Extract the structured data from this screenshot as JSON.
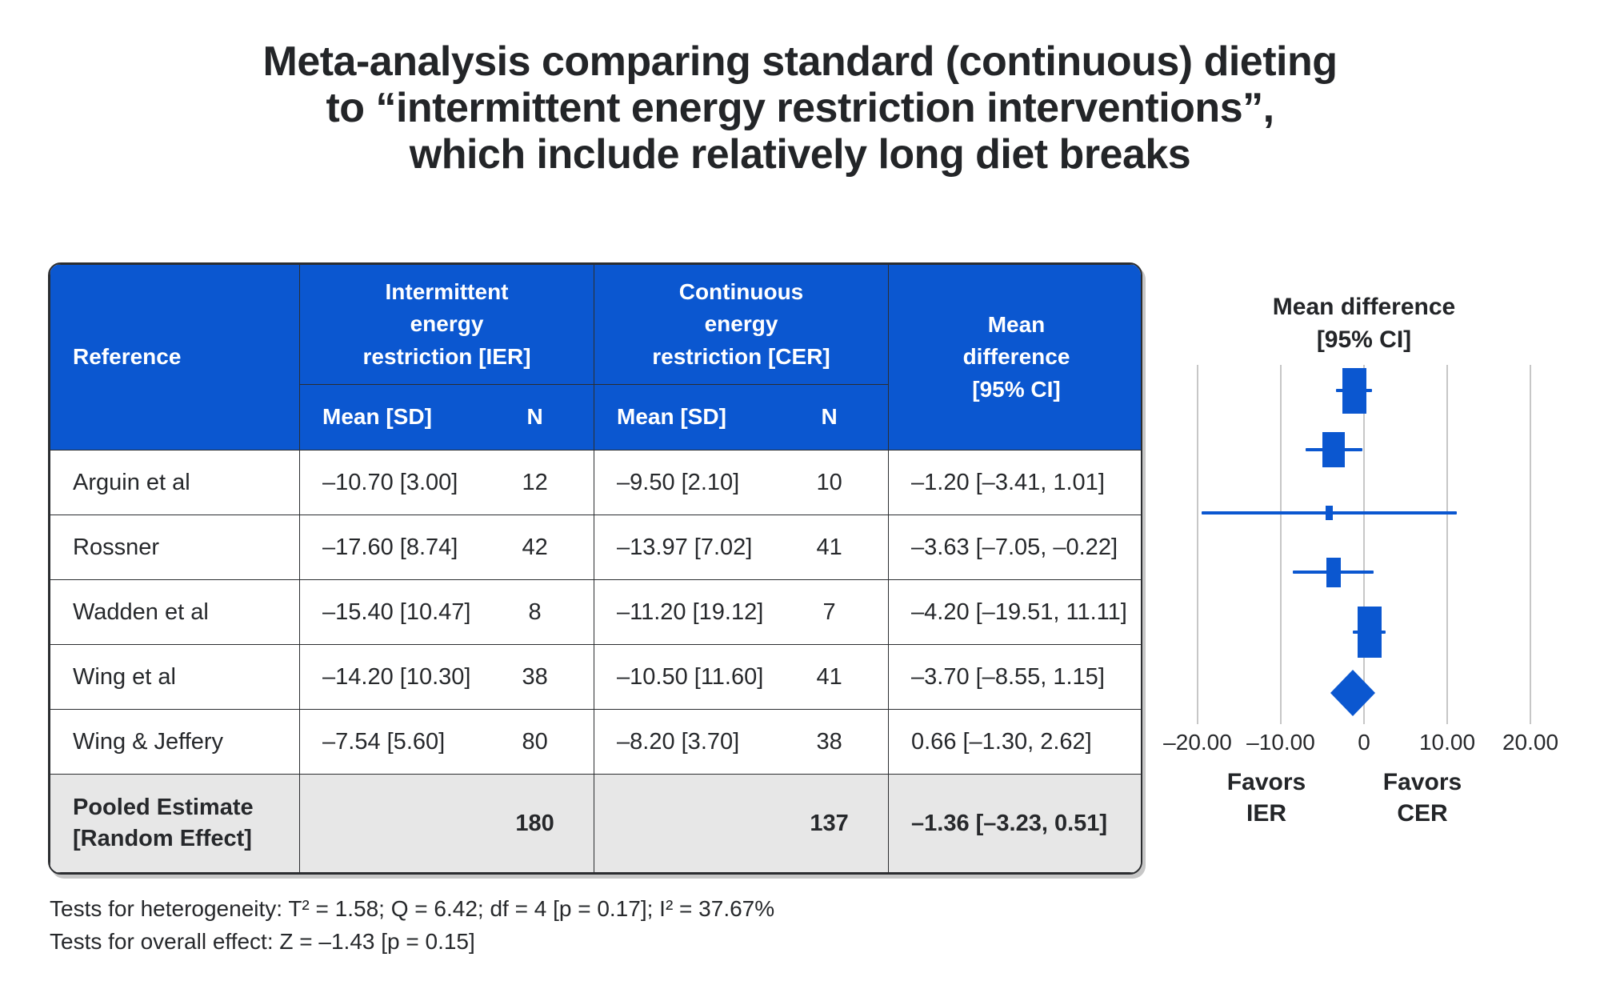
{
  "title": {
    "lines": [
      "Meta-analysis comparing standard (continuous) dieting",
      "to “intermittent energy restriction interventions”,",
      "which include relatively long diet breaks"
    ]
  },
  "colors": {
    "header_blue": "#0b57d0",
    "marker_blue": "#0b57d0",
    "pooled_row_bg": "#e7e7e7",
    "gridline_gray": "#c7c7c7",
    "text": "#26282b",
    "border": "#2b2d30"
  },
  "table": {
    "header": {
      "reference": "Reference",
      "ier": {
        "lines": [
          "Intermittent",
          "energy",
          "restriction [IER]"
        ]
      },
      "cer": {
        "lines": [
          "Continuous",
          "energy",
          "restriction [CER]"
        ]
      },
      "mean_diff": {
        "lines": [
          "Mean",
          "difference",
          "[95% CI]"
        ]
      },
      "subheader": {
        "mean_sd": "Mean [SD]",
        "n": "N"
      }
    },
    "rows": [
      {
        "reference": "Arguin et al",
        "ier_mean_sd": "–10.70 [3.00]",
        "ier_n": "12",
        "cer_mean_sd": "–9.50 [2.10]",
        "cer_n": "10",
        "mean_diff": "–1.20 [–3.41, 1.01]"
      },
      {
        "reference": "Rossner",
        "ier_mean_sd": "–17.60 [8.74]",
        "ier_n": "42",
        "cer_mean_sd": "–13.97 [7.02]",
        "cer_n": "41",
        "mean_diff": "–3.63 [–7.05, –0.22]"
      },
      {
        "reference": "Wadden et al",
        "ier_mean_sd": "–15.40 [10.47]",
        "ier_n": "8",
        "cer_mean_sd": "–11.20 [19.12]",
        "cer_n": "7",
        "mean_diff": "–4.20 [–19.51, 11.11]"
      },
      {
        "reference": "Wing et al",
        "ier_mean_sd": "–14.20 [10.30]",
        "ier_n": "38",
        "cer_mean_sd": "–10.50 [11.60]",
        "cer_n": "41",
        "mean_diff": "–3.70 [–8.55, 1.15]"
      },
      {
        "reference": "Wing & Jeffery",
        "ier_mean_sd": "–7.54 [5.60]",
        "ier_n": "80",
        "cer_mean_sd": "–8.20 [3.70]",
        "cer_n": "38",
        "mean_diff": "0.66 [–1.30, 2.62]"
      }
    ],
    "pooled": {
      "label_lines": [
        "Pooled Estimate",
        "[Random Effect]"
      ],
      "ier_mean_sd": "",
      "ier_n": "180",
      "cer_mean_sd": "",
      "cer_n": "137",
      "mean_diff": "–1.36 [–3.23, 0.51]"
    }
  },
  "footnotes": [
    "Tests for heterogeneity: T² = 1.58; Q = 6.42; df = 4 [p = 0.17]; I² = 37.67%",
    "Tests for overall effect: Z = –1.43 [p = 0.15]"
  ],
  "forest": {
    "title_lines": [
      "Mean difference",
      "[95% CI]"
    ],
    "ticks": [
      {
        "value": -20,
        "label": "–20.00"
      },
      {
        "value": -10,
        "label": "–10.00"
      },
      {
        "value": 0,
        "label": "0"
      },
      {
        "value": 10,
        "label": "10.00"
      },
      {
        "value": 20,
        "label": "20.00"
      }
    ],
    "favors_left_lines": [
      "Favors",
      "IER"
    ],
    "favors_right_lines": [
      "Favors",
      "CER"
    ]
  },
  "chart_data": {
    "type": "scatter",
    "subtype": "forest-plot",
    "title": "Mean difference [95% CI]",
    "xlabel": "Mean difference",
    "x_axis": {
      "min": -20,
      "max": 20,
      "tick_values": [
        -20,
        -10,
        0,
        10,
        20
      ],
      "grid": true
    },
    "favors": {
      "negative_side": "Favors IER",
      "positive_side": "Favors CER"
    },
    "studies": [
      {
        "name": "Arguin et al",
        "mean_difference": -1.2,
        "ci95": [
          -3.41,
          1.01
        ],
        "ier": {
          "mean": -10.7,
          "sd": 3.0,
          "n": 12
        },
        "cer": {
          "mean": -9.5,
          "sd": 2.1,
          "n": 10
        },
        "marker_w": 30,
        "marker_h": 57
      },
      {
        "name": "Rossner",
        "mean_difference": -3.63,
        "ci95": [
          -7.05,
          -0.22
        ],
        "ier": {
          "mean": -17.6,
          "sd": 8.74,
          "n": 42
        },
        "cer": {
          "mean": -13.97,
          "sd": 7.02,
          "n": 41
        },
        "marker_w": 28,
        "marker_h": 44
      },
      {
        "name": "Wadden et al",
        "mean_difference": -4.2,
        "ci95": [
          -19.51,
          11.11
        ],
        "ier": {
          "mean": -15.4,
          "sd": 10.47,
          "n": 8
        },
        "cer": {
          "mean": -11.2,
          "sd": 19.12,
          "n": 7
        },
        "marker_w": 9,
        "marker_h": 18
      },
      {
        "name": "Wing et al",
        "mean_difference": -3.7,
        "ci95": [
          -8.55,
          1.15
        ],
        "ier": {
          "mean": -14.2,
          "sd": 10.3,
          "n": 38
        },
        "cer": {
          "mean": -10.5,
          "sd": 11.6,
          "n": 41
        },
        "marker_w": 18,
        "marker_h": 37
      },
      {
        "name": "Wing & Jeffery",
        "mean_difference": 0.66,
        "ci95": [
          -1.3,
          2.62
        ],
        "ier": {
          "mean": -7.54,
          "sd": 5.6,
          "n": 80
        },
        "cer": {
          "mean": -8.2,
          "sd": 3.7,
          "n": 38
        },
        "marker_w": 30,
        "marker_h": 64
      }
    ],
    "pooled": {
      "name": "Pooled Estimate [Random Effect]",
      "mean_difference": -1.36,
      "ci95": [
        -3.23,
        0.51
      ],
      "ier_total_n": 180,
      "cer_total_n": 137
    },
    "heterogeneity": {
      "T2": 1.58,
      "Q": 6.42,
      "df": 4,
      "p": 0.17,
      "I2_percent": 37.67
    },
    "overall_effect": {
      "Z": -1.43,
      "p": 0.15
    }
  }
}
